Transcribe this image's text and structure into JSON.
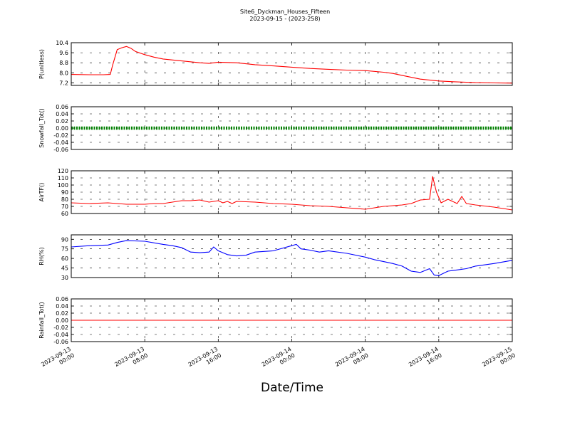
{
  "chart_data": {
    "type": "line",
    "title": "Site6_Dyckman_Houses_Fifteen",
    "subtitle": "2023-09-15 - (2023-258)",
    "xlabel": "Date/Time",
    "x_ticks": [
      {
        "d": "2023-09-13",
        "t": "00:00"
      },
      {
        "d": "2023-09-13",
        "t": "08:00"
      },
      {
        "d": "2023-09-13",
        "t": "16:00"
      },
      {
        "d": "2023-09-14",
        "t": "00:00"
      },
      {
        "d": "2023-09-14",
        "t": "08:00"
      },
      {
        "d": "2023-09-14",
        "t": "16:00"
      },
      {
        "d": "2023-09-15",
        "t": "00:00"
      }
    ],
    "x_range": [
      "2023-09-13 00:00",
      "2023-09-15 00:00"
    ],
    "grid": true,
    "panels": [
      {
        "ylabel": "P(unitless)",
        "ylim": [
          7.0,
          10.4
        ],
        "yticks": [
          "10.4",
          "9.6",
          "8.8",
          "8.0",
          "7.2"
        ],
        "series": [
          {
            "color": "#ff0000",
            "points": [
              [
                "2023-09-13 00:00",
                7.87
              ],
              [
                "2023-09-13 02:00",
                7.85
              ],
              [
                "2023-09-13 03:30",
                7.85
              ],
              [
                "2023-09-13 04:15",
                7.87
              ],
              [
                "2023-09-13 04:30",
                8.6
              ],
              [
                "2023-09-13 05:00",
                9.85
              ],
              [
                "2023-09-13 05:30",
                10.0
              ],
              [
                "2023-09-13 06:00",
                10.1
              ],
              [
                "2023-09-13 06:30",
                9.95
              ],
              [
                "2023-09-13 07:00",
                9.7
              ],
              [
                "2023-09-13 08:00",
                9.45
              ],
              [
                "2023-09-13 09:00",
                9.25
              ],
              [
                "2023-09-13 10:00",
                9.1
              ],
              [
                "2023-09-13 12:00",
                8.95
              ],
              [
                "2023-09-13 14:00",
                8.8
              ],
              [
                "2023-09-13 15:00",
                8.75
              ],
              [
                "2023-09-13 16:00",
                8.85
              ],
              [
                "2023-09-13 18:00",
                8.8
              ],
              [
                "2023-09-13 20:00",
                8.65
              ],
              [
                "2023-09-13 22:00",
                8.55
              ],
              [
                "2023-09-14 00:00",
                8.45
              ],
              [
                "2023-09-14 02:00",
                8.35
              ],
              [
                "2023-09-14 04:00",
                8.28
              ],
              [
                "2023-09-14 06:00",
                8.22
              ],
              [
                "2023-09-14 08:00",
                8.18
              ],
              [
                "2023-09-14 10:00",
                8.05
              ],
              [
                "2023-09-14 11:00",
                7.95
              ],
              [
                "2023-09-14 12:00",
                7.8
              ],
              [
                "2023-09-14 14:00",
                7.5
              ],
              [
                "2023-09-14 16:00",
                7.35
              ],
              [
                "2023-09-14 18:00",
                7.28
              ],
              [
                "2023-09-14 20:00",
                7.22
              ],
              [
                "2023-09-14 22:00",
                7.2
              ],
              [
                "2023-09-15 00:00",
                7.18
              ]
            ]
          }
        ]
      },
      {
        "ylabel": "Snowfall_Tot()",
        "ylim": [
          -0.06,
          0.06
        ],
        "yticks": [
          "0.06",
          "0.04",
          "0.02",
          "0.00",
          "-0.02",
          "-0.04",
          "-0.06"
        ],
        "series": [
          {
            "color": "#008000",
            "style": "thick-dotted",
            "points": [
              [
                "2023-09-13 00:00",
                0.0
              ],
              [
                "2023-09-15 00:00",
                0.0
              ]
            ]
          }
        ]
      },
      {
        "ylabel": "AirTF()",
        "ylim": [
          60,
          120
        ],
        "yticks": [
          "120",
          "110",
          "100",
          "90",
          "80",
          "70",
          "60"
        ],
        "series": [
          {
            "color": "#ff0000",
            "points": [
              [
                "2023-09-13 00:00",
                75
              ],
              [
                "2023-09-13 02:00",
                74
              ],
              [
                "2023-09-13 04:00",
                75
              ],
              [
                "2023-09-13 06:00",
                73
              ],
              [
                "2023-09-13 08:00",
                73
              ],
              [
                "2023-09-13 09:00",
                74
              ],
              [
                "2023-09-13 10:00",
                74
              ],
              [
                "2023-09-13 11:00",
                76
              ],
              [
                "2023-09-13 12:00",
                78
              ],
              [
                "2023-09-13 13:00",
                78
              ],
              [
                "2023-09-13 14:00",
                79
              ],
              [
                "2023-09-13 15:00",
                76
              ],
              [
                "2023-09-13 16:00",
                78
              ],
              [
                "2023-09-13 16:30",
                75
              ],
              [
                "2023-09-13 17:00",
                77
              ],
              [
                "2023-09-13 17:30",
                74
              ],
              [
                "2023-09-13 18:00",
                77
              ],
              [
                "2023-09-13 20:00",
                76
              ],
              [
                "2023-09-13 22:00",
                74
              ],
              [
                "2023-09-14 00:00",
                73
              ],
              [
                "2023-09-14 02:00",
                71
              ],
              [
                "2023-09-14 04:00",
                70
              ],
              [
                "2023-09-14 06:00",
                68
              ],
              [
                "2023-09-14 08:00",
                66
              ],
              [
                "2023-09-14 09:00",
                68
              ],
              [
                "2023-09-14 10:00",
                70
              ],
              [
                "2023-09-14 12:00",
                72
              ],
              [
                "2023-09-14 13:00",
                74
              ],
              [
                "2023-09-14 14:00",
                79
              ],
              [
                "2023-09-14 15:00",
                80
              ],
              [
                "2023-09-14 15:20",
                112
              ],
              [
                "2023-09-14 15:45",
                90
              ],
              [
                "2023-09-14 16:15",
                75
              ],
              [
                "2023-09-14 17:00",
                80
              ],
              [
                "2023-09-14 18:00",
                74
              ],
              [
                "2023-09-14 18:30",
                84
              ],
              [
                "2023-09-14 19:00",
                74
              ],
              [
                "2023-09-14 20:00",
                72
              ],
              [
                "2023-09-14 22:00",
                69
              ],
              [
                "2023-09-15 00:00",
                65
              ]
            ]
          }
        ]
      },
      {
        "ylabel": "RH(%)",
        "ylim": [
          30,
          97
        ],
        "yticks": [
          "90",
          "75",
          "60",
          "45",
          "30"
        ],
        "series": [
          {
            "color": "#0000ff",
            "points": [
              [
                "2023-09-13 00:00",
                78
              ],
              [
                "2023-09-13 02:00",
                80
              ],
              [
                "2023-09-13 04:00",
                81
              ],
              [
                "2023-09-13 05:00",
                85
              ],
              [
                "2023-09-13 06:00",
                88
              ],
              [
                "2023-09-13 08:00",
                87
              ],
              [
                "2023-09-13 10:00",
                82
              ],
              [
                "2023-09-13 11:00",
                80
              ],
              [
                "2023-09-13 12:00",
                77
              ],
              [
                "2023-09-13 13:00",
                70
              ],
              [
                "2023-09-13 14:00",
                69
              ],
              [
                "2023-09-13 15:00",
                70
              ],
              [
                "2023-09-13 15:30",
                78
              ],
              [
                "2023-09-13 16:00",
                72
              ],
              [
                "2023-09-13 17:00",
                66
              ],
              [
                "2023-09-13 18:00",
                64
              ],
              [
                "2023-09-13 19:00",
                65
              ],
              [
                "2023-09-13 20:00",
                70
              ],
              [
                "2023-09-13 22:00",
                72
              ],
              [
                "2023-09-14 00:00",
                80
              ],
              [
                "2023-09-14 00:30",
                82
              ],
              [
                "2023-09-14 01:00",
                75
              ],
              [
                "2023-09-14 02:00",
                73
              ],
              [
                "2023-09-14 03:00",
                70
              ],
              [
                "2023-09-14 04:00",
                72
              ],
              [
                "2023-09-14 06:00",
                68
              ],
              [
                "2023-09-14 08:00",
                62
              ],
              [
                "2023-09-14 09:00",
                58
              ],
              [
                "2023-09-14 10:00",
                55
              ],
              [
                "2023-09-14 11:00",
                52
              ],
              [
                "2023-09-14 12:00",
                48
              ],
              [
                "2023-09-14 13:00",
                40
              ],
              [
                "2023-09-14 14:00",
                38
              ],
              [
                "2023-09-14 15:00",
                44
              ],
              [
                "2023-09-14 15:30",
                34
              ],
              [
                "2023-09-14 16:00",
                33
              ],
              [
                "2023-09-14 17:00",
                40
              ],
              [
                "2023-09-14 18:00",
                42
              ],
              [
                "2023-09-14 19:00",
                44
              ],
              [
                "2023-09-14 20:00",
                48
              ],
              [
                "2023-09-14 22:00",
                52
              ],
              [
                "2023-09-15 00:00",
                57
              ]
            ]
          }
        ]
      },
      {
        "ylabel": "Rainfall_Tot()",
        "ylim": [
          -0.06,
          0.06
        ],
        "yticks": [
          "0.06",
          "0.04",
          "0.02",
          "0.00",
          "-0.02",
          "-0.04",
          "-0.06"
        ],
        "series": [
          {
            "color": "#ff0000",
            "points": [
              [
                "2023-09-13 00:00",
                0.0
              ],
              [
                "2023-09-15 00:00",
                0.0
              ]
            ]
          }
        ]
      }
    ]
  }
}
